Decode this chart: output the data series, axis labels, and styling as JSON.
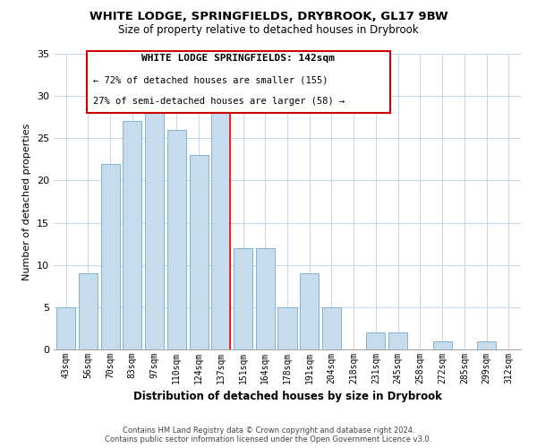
{
  "title": "WHITE LODGE, SPRINGFIELDS, DRYBROOK, GL17 9BW",
  "subtitle": "Size of property relative to detached houses in Drybrook",
  "xlabel": "Distribution of detached houses by size in Drybrook",
  "ylabel": "Number of detached properties",
  "bin_labels": [
    "43sqm",
    "56sqm",
    "70sqm",
    "83sqm",
    "97sqm",
    "110sqm",
    "124sqm",
    "137sqm",
    "151sqm",
    "164sqm",
    "178sqm",
    "191sqm",
    "204sqm",
    "218sqm",
    "231sqm",
    "245sqm",
    "258sqm",
    "272sqm",
    "285sqm",
    "299sqm",
    "312sqm"
  ],
  "bar_heights": [
    5,
    9,
    22,
    27,
    28,
    26,
    23,
    28,
    12,
    12,
    5,
    9,
    5,
    0,
    2,
    2,
    0,
    1,
    0,
    1,
    0
  ],
  "highlight_line_index": 7,
  "normal_color": "#c6dcec",
  "bar_edge_color": "#7fb4d4",
  "ylim": [
    0,
    35
  ],
  "yticks": [
    0,
    5,
    10,
    15,
    20,
    25,
    30,
    35
  ],
  "annotation_title": "WHITE LODGE SPRINGFIELDS: 142sqm",
  "annotation_line1": "← 72% of detached houses are smaller (155)",
  "annotation_line2": "27% of semi-detached houses are larger (58) →",
  "footer_line1": "Contains HM Land Registry data © Crown copyright and database right 2024.",
  "footer_line2": "Contains public sector information licensed under the Open Government Licence v3.0.",
  "bg_color": "#ffffff",
  "grid_color": "#c8d8e8"
}
